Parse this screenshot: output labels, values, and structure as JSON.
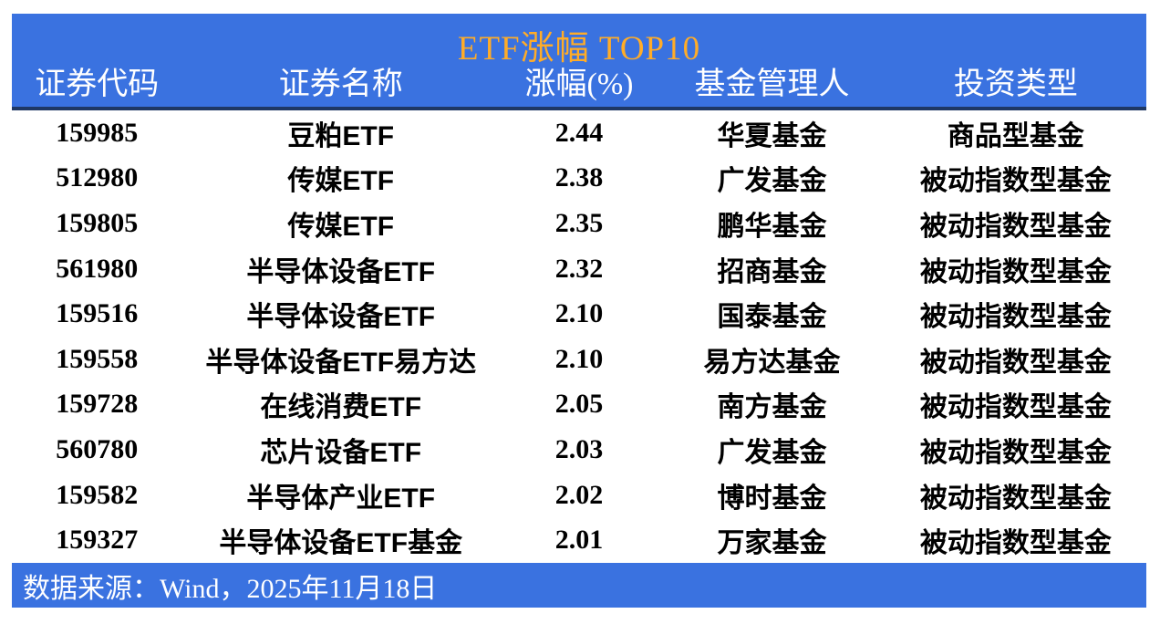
{
  "title": "ETF涨幅 TOP10",
  "colors": {
    "banner_blue": "#3A72E0",
    "title_gold": "#FFAC28",
    "rule_navy": "#1F3864",
    "header_text": "#FFFFFF",
    "body_text": "#000000"
  },
  "chart_data": {
    "type": "table",
    "title": "ETF涨幅 TOP10",
    "columns": [
      {
        "key": "code",
        "label": "证券代码"
      },
      {
        "key": "name",
        "label": "证券名称"
      },
      {
        "key": "pct",
        "label": "涨幅(%)"
      },
      {
        "key": "manager",
        "label": "基金管理人"
      },
      {
        "key": "type",
        "label": "投资类型"
      }
    ],
    "rows": [
      {
        "code": "159985",
        "name": "豆粕ETF",
        "pct": "2.44",
        "manager": "华夏基金",
        "type": "商品型基金"
      },
      {
        "code": "512980",
        "name": "传媒ETF",
        "pct": "2.38",
        "manager": "广发基金",
        "type": "被动指数型基金"
      },
      {
        "code": "159805",
        "name": "传媒ETF",
        "pct": "2.35",
        "manager": "鹏华基金",
        "type": "被动指数型基金"
      },
      {
        "code": "561980",
        "name": "半导体设备ETF",
        "pct": "2.32",
        "manager": "招商基金",
        "type": "被动指数型基金"
      },
      {
        "code": "159516",
        "name": "半导体设备ETF",
        "pct": "2.10",
        "manager": "国泰基金",
        "type": "被动指数型基金"
      },
      {
        "code": "159558",
        "name": "半导体设备ETF易方达",
        "pct": "2.10",
        "manager": "易方达基金",
        "type": "被动指数型基金"
      },
      {
        "code": "159728",
        "name": "在线消费ETF",
        "pct": "2.05",
        "manager": "南方基金",
        "type": "被动指数型基金"
      },
      {
        "code": "560780",
        "name": "芯片设备ETF",
        "pct": "2.03",
        "manager": "广发基金",
        "type": "被动指数型基金"
      },
      {
        "code": "159582",
        "name": "半导体产业ETF",
        "pct": "2.02",
        "manager": "博时基金",
        "type": "被动指数型基金"
      },
      {
        "code": "159327",
        "name": "半导体设备ETF基金",
        "pct": "2.01",
        "manager": "万家基金",
        "type": "被动指数型基金"
      }
    ]
  },
  "footer": {
    "source_text": "数据来源：Wind，2025年11月18日"
  }
}
